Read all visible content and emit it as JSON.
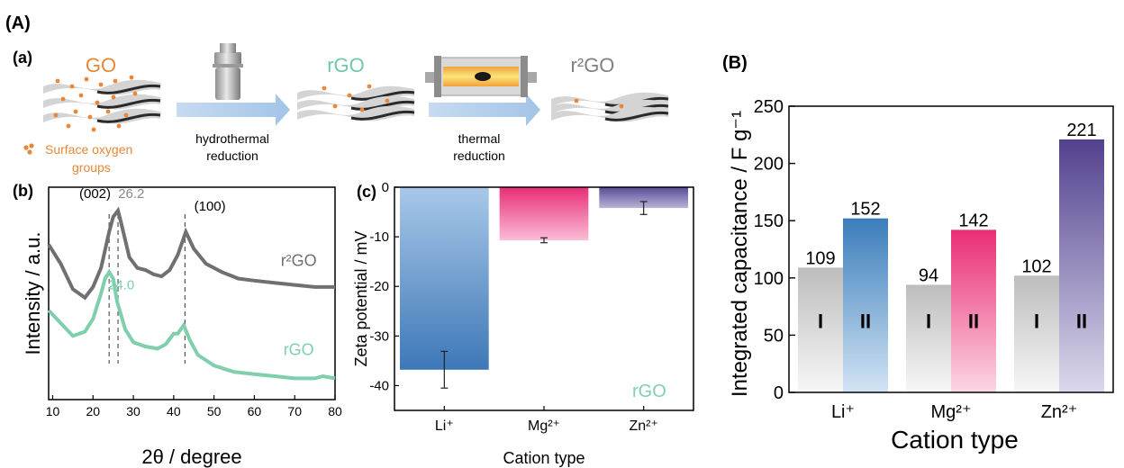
{
  "panel_labels": {
    "A": "(A)",
    "a": "(a)",
    "b": "(b)",
    "c": "(c)",
    "B": "(B)"
  },
  "schematic": {
    "materials": [
      "GO",
      "rGO",
      "r²GO"
    ],
    "legend": [
      "Surface oxygen",
      "groups"
    ],
    "step1": [
      "hydrothermal",
      "reduction"
    ],
    "step2": [
      "thermal",
      "reduction"
    ],
    "colors": {
      "go": "#e8863a",
      "rgo": "#6fc9a4",
      "r2go": "#808080",
      "arrow": "#a9c7e8",
      "oxygen": "#e8863a"
    }
  },
  "chart_data": [
    {
      "id": "b",
      "type": "line",
      "xlabel": "2θ / degree",
      "ylabel": "Intensity / a.u.",
      "xlim": [
        9,
        80
      ],
      "xticks": [
        "10",
        "20",
        "30",
        "40",
        "50",
        "60",
        "70",
        "80"
      ],
      "series": [
        {
          "name": "r²GO",
          "color": "#707070",
          "x": [
            9,
            12,
            15,
            18,
            20,
            22,
            24,
            25,
            26.2,
            27,
            29,
            31,
            33,
            35,
            37,
            39,
            41,
            43,
            45,
            48,
            52,
            56,
            60,
            65,
            70,
            75,
            80
          ],
          "y": [
            0.73,
            0.64,
            0.52,
            0.48,
            0.53,
            0.62,
            0.79,
            0.86,
            0.89,
            0.83,
            0.67,
            0.62,
            0.61,
            0.59,
            0.58,
            0.61,
            0.68,
            0.79,
            0.71,
            0.64,
            0.6,
            0.57,
            0.56,
            0.55,
            0.54,
            0.53,
            0.53
          ]
        },
        {
          "name": "rGO",
          "color": "#7fcfac",
          "x": [
            9,
            12,
            15,
            18,
            20,
            22,
            23,
            24,
            25,
            26,
            28,
            30,
            33,
            36,
            38,
            40,
            41,
            42.5,
            44,
            46,
            50,
            55,
            60,
            65,
            70,
            75,
            77,
            80
          ],
          "y": [
            0.42,
            0.36,
            0.3,
            0.32,
            0.38,
            0.5,
            0.57,
            0.6,
            0.57,
            0.46,
            0.33,
            0.27,
            0.25,
            0.24,
            0.26,
            0.31,
            0.31,
            0.35,
            0.28,
            0.21,
            0.16,
            0.13,
            0.12,
            0.11,
            0.1,
            0.1,
            0.11,
            0.1
          ]
        }
      ],
      "annotations": [
        {
          "text": "(002)",
          "x": 20.5,
          "y": 0.95
        },
        {
          "text": "26.2",
          "x": 29.5,
          "y": 0.95
        },
        {
          "text": "(100)",
          "x": 49,
          "y": 0.89
        },
        {
          "text": "24.0",
          "x": 27,
          "y": 0.52
        },
        {
          "text": "r²GO",
          "x": 71,
          "y": 0.63
        },
        {
          "text": "rGO",
          "x": 71,
          "y": 0.21
        }
      ],
      "vlines": [
        24.0,
        26.2,
        42.8
      ]
    },
    {
      "id": "c",
      "type": "bar",
      "xlabel": "Cation type",
      "ylabel": "Zeta potential / mV",
      "categories": [
        "Li⁺",
        "Mg²⁺",
        "Zn²⁺"
      ],
      "values": [
        -36.8,
        -10.7,
        -4.2
      ],
      "errors": [
        3.7,
        0.5,
        1.3
      ],
      "ylim": [
        -45,
        0
      ],
      "yticks": [
        "0",
        "-10",
        "-20",
        "-30",
        "-40"
      ],
      "annotation": "rGO",
      "colors": [
        [
          "#4a84c0",
          "#a8c8e8"
        ],
        [
          "#e82e78",
          "#fbbcd6"
        ],
        [
          "#4b3d8c",
          "#b8b4d6"
        ]
      ]
    },
    {
      "id": "B",
      "type": "bar",
      "xlabel": "Cation type",
      "ylabel": "Integrated capacitance / F g⁻¹",
      "categories": [
        "Li⁺",
        "Mg²⁺",
        "Zn²⁺"
      ],
      "series": [
        {
          "name": "I",
          "values": [
            109,
            94,
            102
          ]
        },
        {
          "name": "II",
          "values": [
            152,
            142,
            221
          ]
        }
      ],
      "ylim": [
        0,
        250
      ],
      "yticks": [
        "0",
        "50",
        "100",
        "150",
        "200",
        "250"
      ],
      "colors": {
        "I": [
          "#bdbdbd",
          "#f5f5f5"
        ],
        "II": [
          [
            "#3b7dbb",
            "#cfe2f3"
          ],
          [
            "#ea2d74",
            "#fcd3e3"
          ],
          [
            "#53418f",
            "#d9d6ea"
          ]
        ]
      }
    }
  ]
}
